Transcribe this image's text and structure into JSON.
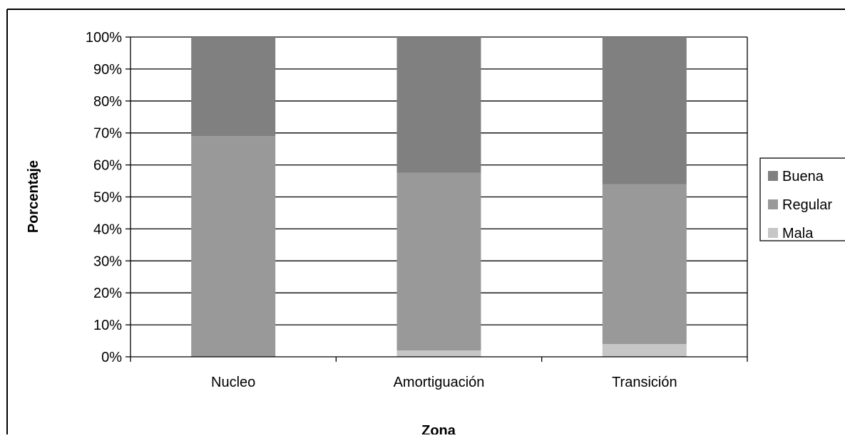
{
  "chart_data": {
    "type": "bar",
    "stacked": true,
    "percent_stacked": true,
    "categories": [
      "Nucleo",
      "Amortiguación",
      "Transición"
    ],
    "series": [
      {
        "name": "Mala",
        "values": [
          0,
          2,
          4
        ],
        "color": "#c6c6c6"
      },
      {
        "name": "Regular",
        "values": [
          69,
          55.5,
          50
        ],
        "color": "#999999"
      },
      {
        "name": "Buena",
        "values": [
          31,
          42.5,
          46
        ],
        "color": "#808080"
      }
    ],
    "title": "",
    "xlabel": "Zona",
    "ylabel": "Porcentaje",
    "ylim": [
      0,
      100
    ],
    "yticks": [
      "0%",
      "10%",
      "20%",
      "30%",
      "40%",
      "50%",
      "60%",
      "70%",
      "80%",
      "90%",
      "100%"
    ],
    "grid": true,
    "legend_position": "right",
    "legend_order": [
      "Buena",
      "Regular",
      "Mala"
    ],
    "grid_color": "#000000",
    "background": "#ffffff"
  }
}
